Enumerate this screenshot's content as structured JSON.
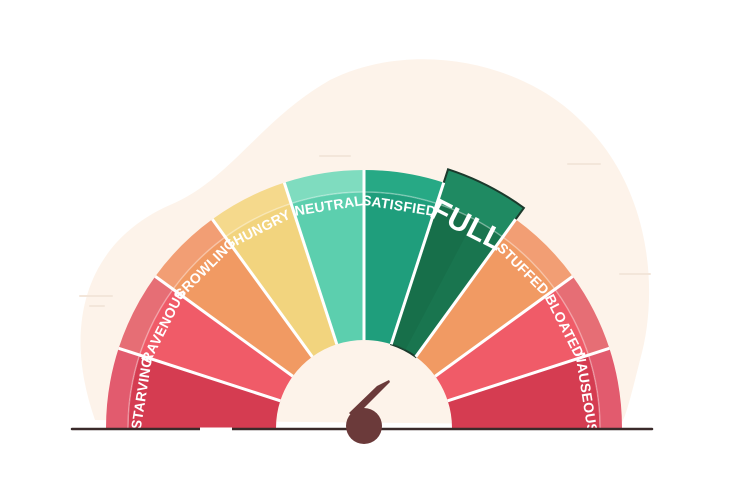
{
  "gauge": {
    "segments": [
      {
        "label": "STARVING",
        "outer": "#e25b6e",
        "inner": "#d53c51"
      },
      {
        "label": "RAVENOUS",
        "outer": "#e66e75",
        "inner": "#f05b68"
      },
      {
        "label": "GROWLING",
        "outer": "#f29e74",
        "inner": "#f19a63"
      },
      {
        "label": "HUNGRY",
        "outer": "#f5d98c",
        "inner": "#f2d47e"
      },
      {
        "label": "NEUTRAL",
        "outer": "#7fdcbf",
        "inner": "#5ccfae"
      },
      {
        "label": "SATISFIED",
        "outer": "#27a985",
        "inner": "#1f9e7c"
      },
      {
        "label": "FULL",
        "outer": "#1f8a62",
        "inner": "#19754f",
        "highlighted": true
      },
      {
        "label": "STUFFED",
        "outer": "#f29e74",
        "inner": "#f19a63"
      },
      {
        "label": "BLOATED",
        "outer": "#e66e75",
        "inner": "#f05b68"
      },
      {
        "label": "NAUSEOUS",
        "outer": "#e25b6e",
        "inner": "#d53c51"
      }
    ],
    "needle_points_to": "FULL",
    "colors": {
      "backdrop": "#fdf3ea",
      "needle": "#6b3a3a",
      "baseline": "#3a2a2a",
      "divider": "#ffffff"
    }
  }
}
